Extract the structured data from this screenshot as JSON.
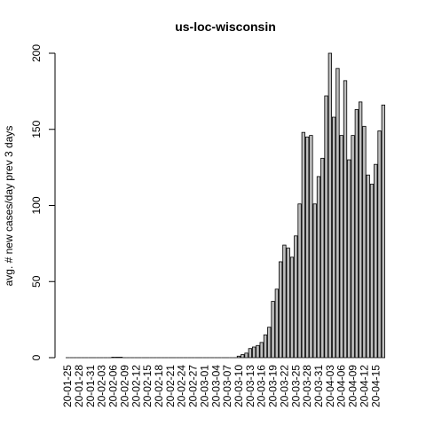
{
  "chart_data": {
    "type": "bar",
    "title": "us-loc-wisconsin",
    "xlabel": "",
    "ylabel": "avg. # new cases/day prev  3  days",
    "ylim": [
      0,
      200
    ],
    "yticks": [
      0,
      50,
      100,
      150,
      200
    ],
    "grid": false,
    "legend": "none",
    "colors": {
      "bar_fill": "#bebebe",
      "bar_stroke": "#000000"
    },
    "tick_labels": [
      "20-01-25",
      "20-01-28",
      "20-01-31",
      "20-02-03",
      "20-02-06",
      "20-02-09",
      "20-02-12",
      "20-02-15",
      "20-02-18",
      "20-02-21",
      "20-02-24",
      "20-02-27",
      "20-03-01",
      "20-03-04",
      "20-03-07",
      "20-03-10",
      "20-03-13",
      "20-03-16",
      "20-03-19",
      "20-03-22",
      "20-03-25",
      "20-03-28",
      "20-03-31",
      "20-04-03",
      "20-04-06",
      "20-04-09",
      "20-04-12",
      "20-04-15"
    ],
    "categories": [
      "20-01-25",
      "20-01-26",
      "20-01-27",
      "20-01-28",
      "20-01-29",
      "20-01-30",
      "20-01-31",
      "20-02-01",
      "20-02-02",
      "20-02-03",
      "20-02-04",
      "20-02-05",
      "20-02-06",
      "20-02-07",
      "20-02-08",
      "20-02-09",
      "20-02-10",
      "20-02-11",
      "20-02-12",
      "20-02-13",
      "20-02-14",
      "20-02-15",
      "20-02-16",
      "20-02-17",
      "20-02-18",
      "20-02-19",
      "20-02-20",
      "20-02-21",
      "20-02-22",
      "20-02-23",
      "20-02-24",
      "20-02-25",
      "20-02-26",
      "20-02-27",
      "20-02-28",
      "20-02-29",
      "20-03-01",
      "20-03-02",
      "20-03-03",
      "20-03-04",
      "20-03-05",
      "20-03-06",
      "20-03-07",
      "20-03-08",
      "20-03-09",
      "20-03-10",
      "20-03-11",
      "20-03-12",
      "20-03-13",
      "20-03-14",
      "20-03-15",
      "20-03-16",
      "20-03-17",
      "20-03-18",
      "20-03-19",
      "20-03-20",
      "20-03-21",
      "20-03-22",
      "20-03-23",
      "20-03-24",
      "20-03-25",
      "20-03-26",
      "20-03-27",
      "20-03-28",
      "20-03-29",
      "20-03-30",
      "20-03-31",
      "20-04-01",
      "20-04-02",
      "20-04-03",
      "20-04-04",
      "20-04-05",
      "20-04-06",
      "20-04-07",
      "20-04-08",
      "20-04-09",
      "20-04-10",
      "20-04-11",
      "20-04-12",
      "20-04-13",
      "20-04-14",
      "20-04-15",
      "20-04-16",
      "20-04-17"
    ],
    "values": [
      0,
      0,
      0,
      0,
      0,
      0,
      0,
      0,
      0,
      0,
      0,
      0,
      0.3,
      0.3,
      0.3,
      0,
      0,
      0,
      0,
      0,
      0,
      0,
      0,
      0,
      0,
      0,
      0,
      0,
      0,
      0,
      0,
      0,
      0,
      0,
      0,
      0,
      0,
      0,
      0,
      0,
      0,
      0,
      0,
      0,
      0,
      1,
      2,
      3,
      6,
      7,
      8,
      10,
      15,
      20,
      37,
      45,
      63,
      74,
      72,
      66,
      80,
      101,
      148,
      145,
      146,
      101,
      119,
      131,
      172,
      200,
      158,
      190,
      146,
      182,
      130,
      146,
      163,
      168,
      152,
      120,
      114,
      127,
      149,
      166
    ]
  }
}
